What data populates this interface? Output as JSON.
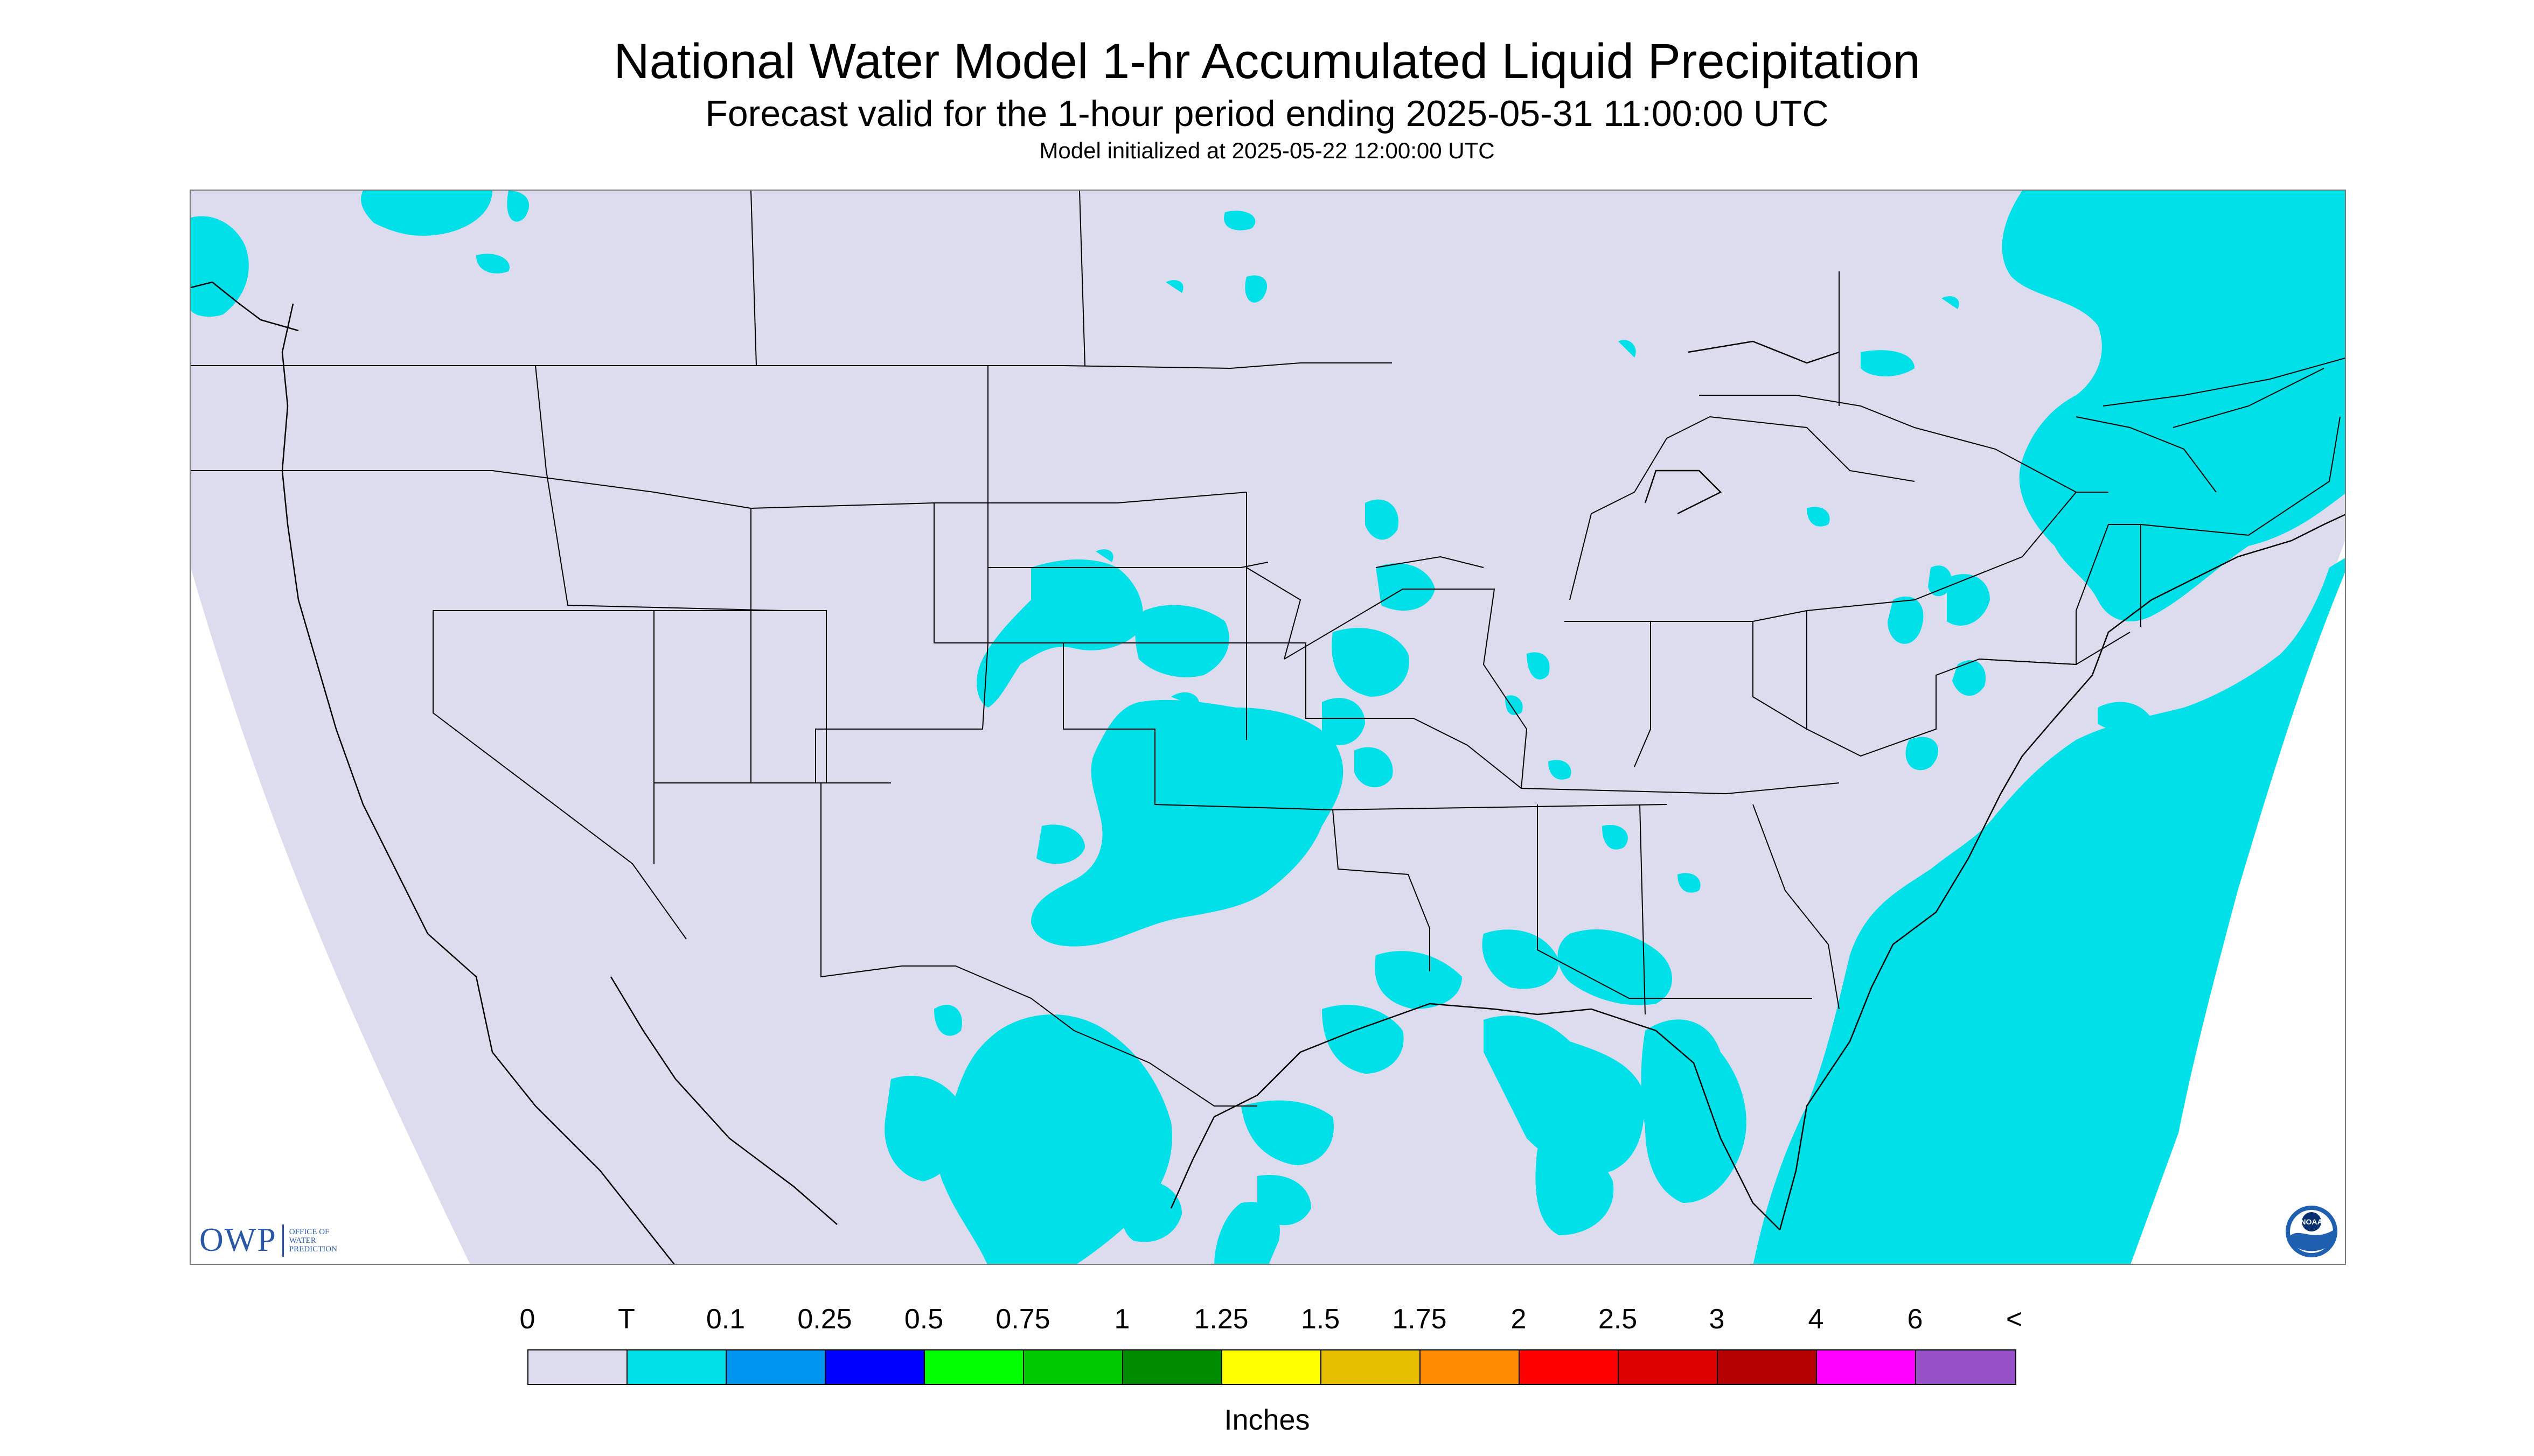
{
  "title": "National Water Model 1-hr Accumulated Liquid Precipitation",
  "subtitle": "Forecast valid for the 1-hour period ending 2025-05-31 11:00:00 UTC",
  "init_line": "Model initialized at 2025-05-22 12:00:00 UTC",
  "logos": {
    "owp_abbrev": "OWP",
    "owp_full": [
      "OFFICE OF",
      "WATER",
      "PREDICTION"
    ],
    "noaa": "NOAA"
  },
  "colors": {
    "no_precip": "#dcdcee",
    "trace": "#00e0e8",
    "outside_domain": "#ffffff",
    "boundaries": "#000000"
  },
  "legend": {
    "labels": [
      "0",
      "T",
      "0.1",
      "0.25",
      "0.5",
      "0.75",
      "1",
      "1.25",
      "1.5",
      "1.75",
      "2",
      "2.5",
      "3",
      "4",
      "6",
      "<"
    ],
    "colors": [
      "#dcdcee",
      "#00e0e8",
      "#0096f0",
      "#0000ff",
      "#00ff00",
      "#00c800",
      "#008c00",
      "#ffff00",
      "#e6be00",
      "#ff8c00",
      "#ff0000",
      "#dc0000",
      "#b40000",
      "#ff00ff",
      "#9650c8"
    ],
    "units": "Inches"
  }
}
